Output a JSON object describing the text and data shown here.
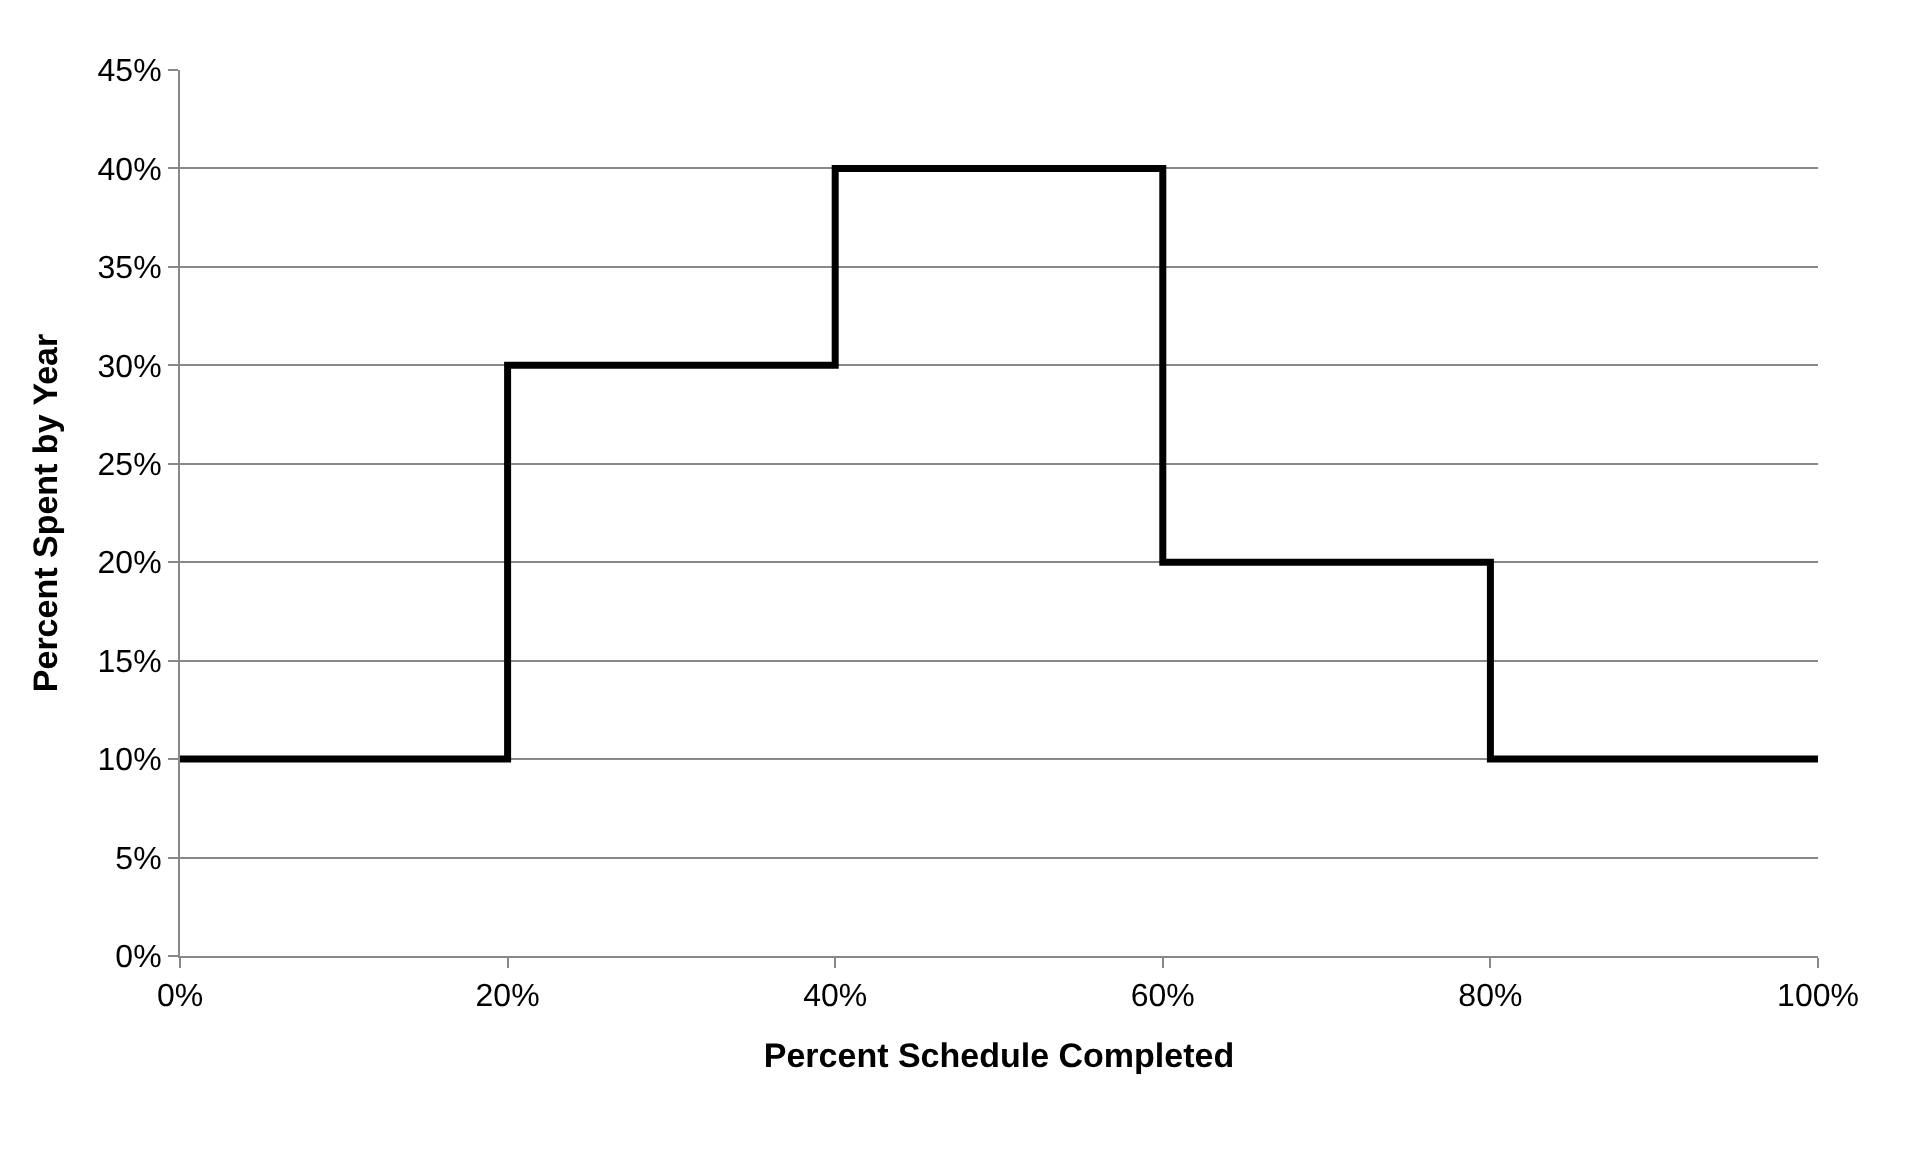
{
  "chart_data": {
    "type": "step",
    "xlabel": "Percent Schedule Completed",
    "ylabel": "Percent Spent by Year",
    "x": [
      0,
      20,
      40,
      60,
      80,
      100
    ],
    "series": [
      {
        "color": "#000000",
        "values": [
          10,
          30,
          40,
          20,
          10,
          10
        ]
      }
    ],
    "xlim": [
      0,
      100
    ],
    "xticks": [
      {
        "value": 0,
        "label": "0%"
      },
      {
        "value": 20,
        "label": "20%"
      },
      {
        "value": 40,
        "label": "40%"
      },
      {
        "value": 60,
        "label": "60%"
      },
      {
        "value": 80,
        "label": "80%"
      },
      {
        "value": 100,
        "label": "100%"
      }
    ],
    "ylim": [
      0,
      45
    ],
    "yticks": [
      {
        "value": 0,
        "label": "0%"
      },
      {
        "value": 5,
        "label": "5%"
      },
      {
        "value": 10,
        "label": "10%"
      },
      {
        "value": 15,
        "label": "15%"
      },
      {
        "value": 20,
        "label": "20%"
      },
      {
        "value": 25,
        "label": "25%"
      },
      {
        "value": 30,
        "label": "30%"
      },
      {
        "value": 35,
        "label": "35%"
      },
      {
        "value": 40,
        "label": "40%"
      },
      {
        "value": 45,
        "label": "45%"
      }
    ],
    "grid": "y",
    "marker": "none",
    "line_style": "solid"
  }
}
